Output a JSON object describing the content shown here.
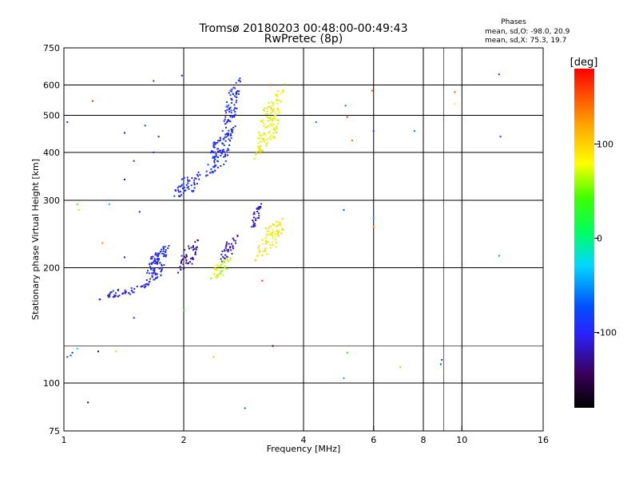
{
  "chart_data": {
    "type": "scatter",
    "title_line1": "Tromsø 20180203 00:48:00-00:49:43",
    "title_line2": "RwPretec (8p)",
    "phases": {
      "heading": "Phases",
      "line_o": "mean, sd,O: -98.0, 20.9",
      "line_x": "mean, sd,X:  75.3, 19.7"
    },
    "xlabel": "Frequency [MHz]",
    "ylabel": "Stationary phase Virtual Height [km]",
    "x_scale": "log",
    "y_scale": "log",
    "xlim": [
      1,
      16
    ],
    "ylim": [
      75,
      750
    ],
    "x_ticks": [
      1,
      2,
      4,
      6,
      8,
      10,
      16
    ],
    "x_tick_labels": [
      "1",
      "2",
      "4",
      "6",
      "8",
      "10",
      "16"
    ],
    "x_grid": [
      2,
      4,
      6,
      8,
      10
    ],
    "x_minor_grid": [
      9
    ],
    "y_ticks": [
      75,
      100,
      200,
      300,
      400,
      500,
      600,
      750
    ],
    "y_tick_labels": [
      "75",
      "100",
      "200",
      "300",
      "400",
      "500",
      "600",
      "750"
    ],
    "y_grid": [
      100,
      200,
      300,
      400,
      500,
      600
    ],
    "y_minor_grid": [
      125
    ],
    "grid": true,
    "colorbar": {
      "label": "[deg]",
      "range": [
        -180,
        180
      ],
      "ticks": [
        100,
        0,
        -100
      ],
      "tick_labels": [
        "100",
        "0",
        "-100"
      ]
    },
    "clusters": [
      {
        "name": "O-low-1",
        "f": [
          1.22,
          1.6
        ],
        "h": [
          165,
          180
        ],
        "phase": -105,
        "n": 40
      },
      {
        "name": "O-low-2",
        "f": [
          1.58,
          1.85
        ],
        "h": [
          175,
          235
        ],
        "phase": -98,
        "n": 110
      },
      {
        "name": "O-low-3",
        "f": [
          1.92,
          2.2
        ],
        "h": [
          192,
          240
        ],
        "phase": -125,
        "n": 45
      },
      {
        "name": "O-low-4",
        "f": [
          2.45,
          2.75
        ],
        "h": [
          205,
          245
        ],
        "phase": -120,
        "n": 35
      },
      {
        "name": "O-low-5",
        "f": [
          2.95,
          3.15
        ],
        "h": [
          250,
          300
        ],
        "phase": -115,
        "n": 30
      },
      {
        "name": "O-high-1",
        "f": [
          1.85,
          2.25
        ],
        "h": [
          300,
          360
        ],
        "phase": -95,
        "n": 55
      },
      {
        "name": "O-high-2",
        "f": [
          2.25,
          2.7
        ],
        "h": [
          340,
          470
        ],
        "phase": -95,
        "n": 110
      },
      {
        "name": "O-high-3",
        "f": [
          2.5,
          2.8
        ],
        "h": [
          450,
          640
        ],
        "phase": -92,
        "n": 70
      },
      {
        "name": "X-low-1",
        "f": [
          2.3,
          2.65
        ],
        "h": [
          183,
          215
        ],
        "phase": 70,
        "n": 40
      },
      {
        "name": "X-low-2",
        "f": [
          3.0,
          3.65
        ],
        "h": [
          205,
          275
        ],
        "phase": 85,
        "n": 75
      },
      {
        "name": "X-high-1",
        "f": [
          3.0,
          3.6
        ],
        "h": [
          380,
          610
        ],
        "phase": 80,
        "n": 130
      }
    ],
    "points": [
      {
        "f": 1.02,
        "h": 480,
        "phase": -100
      },
      {
        "f": 1.18,
        "h": 545,
        "phase": 160
      },
      {
        "f": 1.42,
        "h": 450,
        "phase": -130
      },
      {
        "f": 1.68,
        "h": 615,
        "phase": -90
      },
      {
        "f": 1.98,
        "h": 635,
        "phase": -130
      },
      {
        "f": 1.08,
        "h": 293,
        "phase": 40
      },
      {
        "f": 1.09,
        "h": 283,
        "phase": 60
      },
      {
        "f": 1.3,
        "h": 293,
        "phase": -40
      },
      {
        "f": 1.42,
        "h": 340,
        "phase": -140
      },
      {
        "f": 1.25,
        "h": 232,
        "phase": 130
      },
      {
        "f": 1.42,
        "h": 213,
        "phase": -130
      },
      {
        "f": 1.55,
        "h": 280,
        "phase": -110
      },
      {
        "f": 1.6,
        "h": 470,
        "phase": -80
      },
      {
        "f": 1.5,
        "h": 380,
        "phase": -100
      },
      {
        "f": 1.68,
        "h": 400,
        "phase": -100
      },
      {
        "f": 1.73,
        "h": 440,
        "phase": -110
      },
      {
        "f": 1.02,
        "h": 117,
        "phase": -80
      },
      {
        "f": 1.04,
        "h": 118,
        "phase": -90
      },
      {
        "f": 1.05,
        "h": 120,
        "phase": -75
      },
      {
        "f": 1.08,
        "h": 123,
        "phase": -20
      },
      {
        "f": 1.22,
        "h": 121,
        "phase": -140
      },
      {
        "f": 1.35,
        "h": 121,
        "phase": 60
      },
      {
        "f": 1.5,
        "h": 148,
        "phase": -100
      },
      {
        "f": 1.15,
        "h": 89,
        "phase": -160
      },
      {
        "f": 2.0,
        "h": 155,
        "phase": 30
      },
      {
        "f": 2.38,
        "h": 117,
        "phase": 110
      },
      {
        "f": 2.85,
        "h": 86,
        "phase": -70
      },
      {
        "f": 3.35,
        "h": 125,
        "phase": -150
      },
      {
        "f": 4.3,
        "h": 480,
        "phase": -60
      },
      {
        "f": 5.1,
        "h": 530,
        "phase": -60
      },
      {
        "f": 5.15,
        "h": 495,
        "phase": 160
      },
      {
        "f": 5.3,
        "h": 430,
        "phase": 140
      },
      {
        "f": 5.95,
        "h": 580,
        "phase": 150
      },
      {
        "f": 6.0,
        "h": 455,
        "phase": -100
      },
      {
        "f": 5.05,
        "h": 283,
        "phase": -70
      },
      {
        "f": 6.0,
        "h": 270,
        "phase": -40
      },
      {
        "f": 6.0,
        "h": 256,
        "phase": 130
      },
      {
        "f": 5.15,
        "h": 120,
        "phase": 30
      },
      {
        "f": 5.05,
        "h": 103,
        "phase": -40
      },
      {
        "f": 7.0,
        "h": 110,
        "phase": 110
      },
      {
        "f": 7.6,
        "h": 455,
        "phase": -60
      },
      {
        "f": 8.9,
        "h": 115,
        "phase": -100
      },
      {
        "f": 8.85,
        "h": 112,
        "phase": -75
      },
      {
        "f": 9.6,
        "h": 575,
        "phase": 150
      },
      {
        "f": 9.6,
        "h": 535,
        "phase": 80
      },
      {
        "f": 12.4,
        "h": 640,
        "phase": -90
      },
      {
        "f": 12.5,
        "h": 440,
        "phase": -90
      },
      {
        "f": 12.4,
        "h": 215,
        "phase": -50
      },
      {
        "f": 3.3,
        "h": 600,
        "phase": 150
      },
      {
        "f": 3.15,
        "h": 185,
        "phase": 160
      }
    ]
  }
}
